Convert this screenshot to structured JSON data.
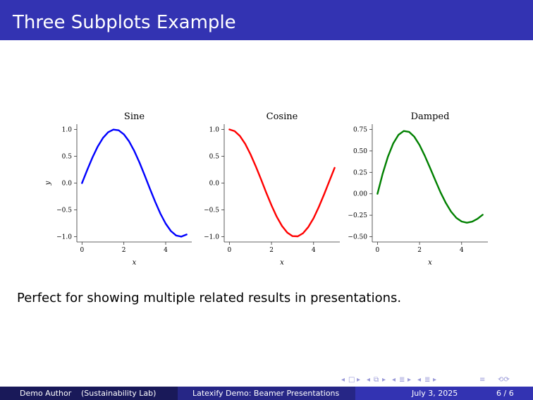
{
  "slide": {
    "title": "Three Subplots Example",
    "caption": "Perfect for showing multiple related results in presentations."
  },
  "footer": {
    "author": "Demo Author",
    "institute": "(Sustainability Lab)",
    "presentation_title": "Latexify Demo: Beamer Presentations",
    "date": "July 3, 2025",
    "page": "6 / 6"
  },
  "colors": {
    "title_bar": "#3333b2",
    "footer_left": "#191959",
    "footer_mid": "#262686",
    "footer_right": "#3333b2"
  },
  "chart_data": [
    {
      "type": "line",
      "title": "Sine",
      "xlabel": "x",
      "ylabel": "y",
      "xlim": [
        0,
        5
      ],
      "ylim": [
        -1.0,
        1.0
      ],
      "xticks": [
        0,
        2,
        4
      ],
      "yticks": [
        -1.0,
        -0.5,
        0.0,
        0.5,
        1.0
      ],
      "ytick_labels": [
        "−1.0",
        "−0.5",
        "0.0",
        "0.5",
        "1.0"
      ],
      "grid": false,
      "series": [
        {
          "color": "#0000ff",
          "x": [
            0.0,
            0.25,
            0.5,
            0.75,
            1.0,
            1.25,
            1.5,
            1.75,
            2.0,
            2.25,
            2.5,
            2.75,
            3.0,
            3.25,
            3.5,
            3.75,
            4.0,
            4.25,
            4.5,
            4.75,
            5.0
          ],
          "y": [
            0.0,
            0.247,
            0.479,
            0.682,
            0.841,
            0.949,
            0.997,
            0.984,
            0.909,
            0.778,
            0.598,
            0.382,
            0.141,
            -0.108,
            -0.351,
            -0.572,
            -0.757,
            -0.895,
            -0.978,
            -0.999,
            -0.959
          ]
        }
      ]
    },
    {
      "type": "line",
      "title": "Cosine",
      "xlabel": "x",
      "ylabel": "",
      "xlim": [
        0,
        5
      ],
      "ylim": [
        -1.0,
        1.0
      ],
      "xticks": [
        0,
        2,
        4
      ],
      "yticks": [
        -1.0,
        -0.5,
        0.0,
        0.5,
        1.0
      ],
      "ytick_labels": [
        "−1.0",
        "−0.5",
        "0.0",
        "0.5",
        "1.0"
      ],
      "grid": false,
      "series": [
        {
          "color": "#ff0000",
          "x": [
            0.0,
            0.25,
            0.5,
            0.75,
            1.0,
            1.25,
            1.5,
            1.75,
            2.0,
            2.25,
            2.5,
            2.75,
            3.0,
            3.25,
            3.5,
            3.75,
            4.0,
            4.25,
            4.5,
            4.75,
            5.0
          ],
          "y": [
            1.0,
            0.969,
            0.878,
            0.732,
            0.54,
            0.315,
            0.071,
            -0.178,
            -0.416,
            -0.628,
            -0.801,
            -0.924,
            -0.99,
            -0.994,
            -0.936,
            -0.82,
            -0.654,
            -0.446,
            -0.211,
            0.038,
            0.284
          ]
        }
      ]
    },
    {
      "type": "line",
      "title": "Damped",
      "xlabel": "x",
      "ylabel": "",
      "xlim": [
        0,
        5
      ],
      "ylim": [
        -0.5,
        0.75
      ],
      "xticks": [
        0,
        2,
        4
      ],
      "yticks": [
        -0.5,
        -0.25,
        0.0,
        0.25,
        0.5,
        0.75
      ],
      "ytick_labels": [
        "−0.50",
        "−0.25",
        "0.00",
        "0.25",
        "0.50",
        "0.75"
      ],
      "grid": false,
      "series": [
        {
          "color": "#008000",
          "x": [
            0.0,
            0.25,
            0.5,
            0.75,
            1.0,
            1.25,
            1.5,
            1.75,
            2.0,
            2.25,
            2.5,
            2.75,
            3.0,
            3.25,
            3.5,
            3.75,
            4.0,
            4.25,
            4.5,
            4.75,
            5.0
          ],
          "y": [
            0.0,
            0.235,
            0.434,
            0.588,
            0.688,
            0.732,
            0.722,
            0.665,
            0.568,
            0.443,
            0.302,
            0.156,
            0.016,
            -0.108,
            -0.208,
            -0.281,
            -0.323,
            -0.337,
            -0.325,
            -0.292,
            -0.244
          ]
        }
      ]
    }
  ]
}
